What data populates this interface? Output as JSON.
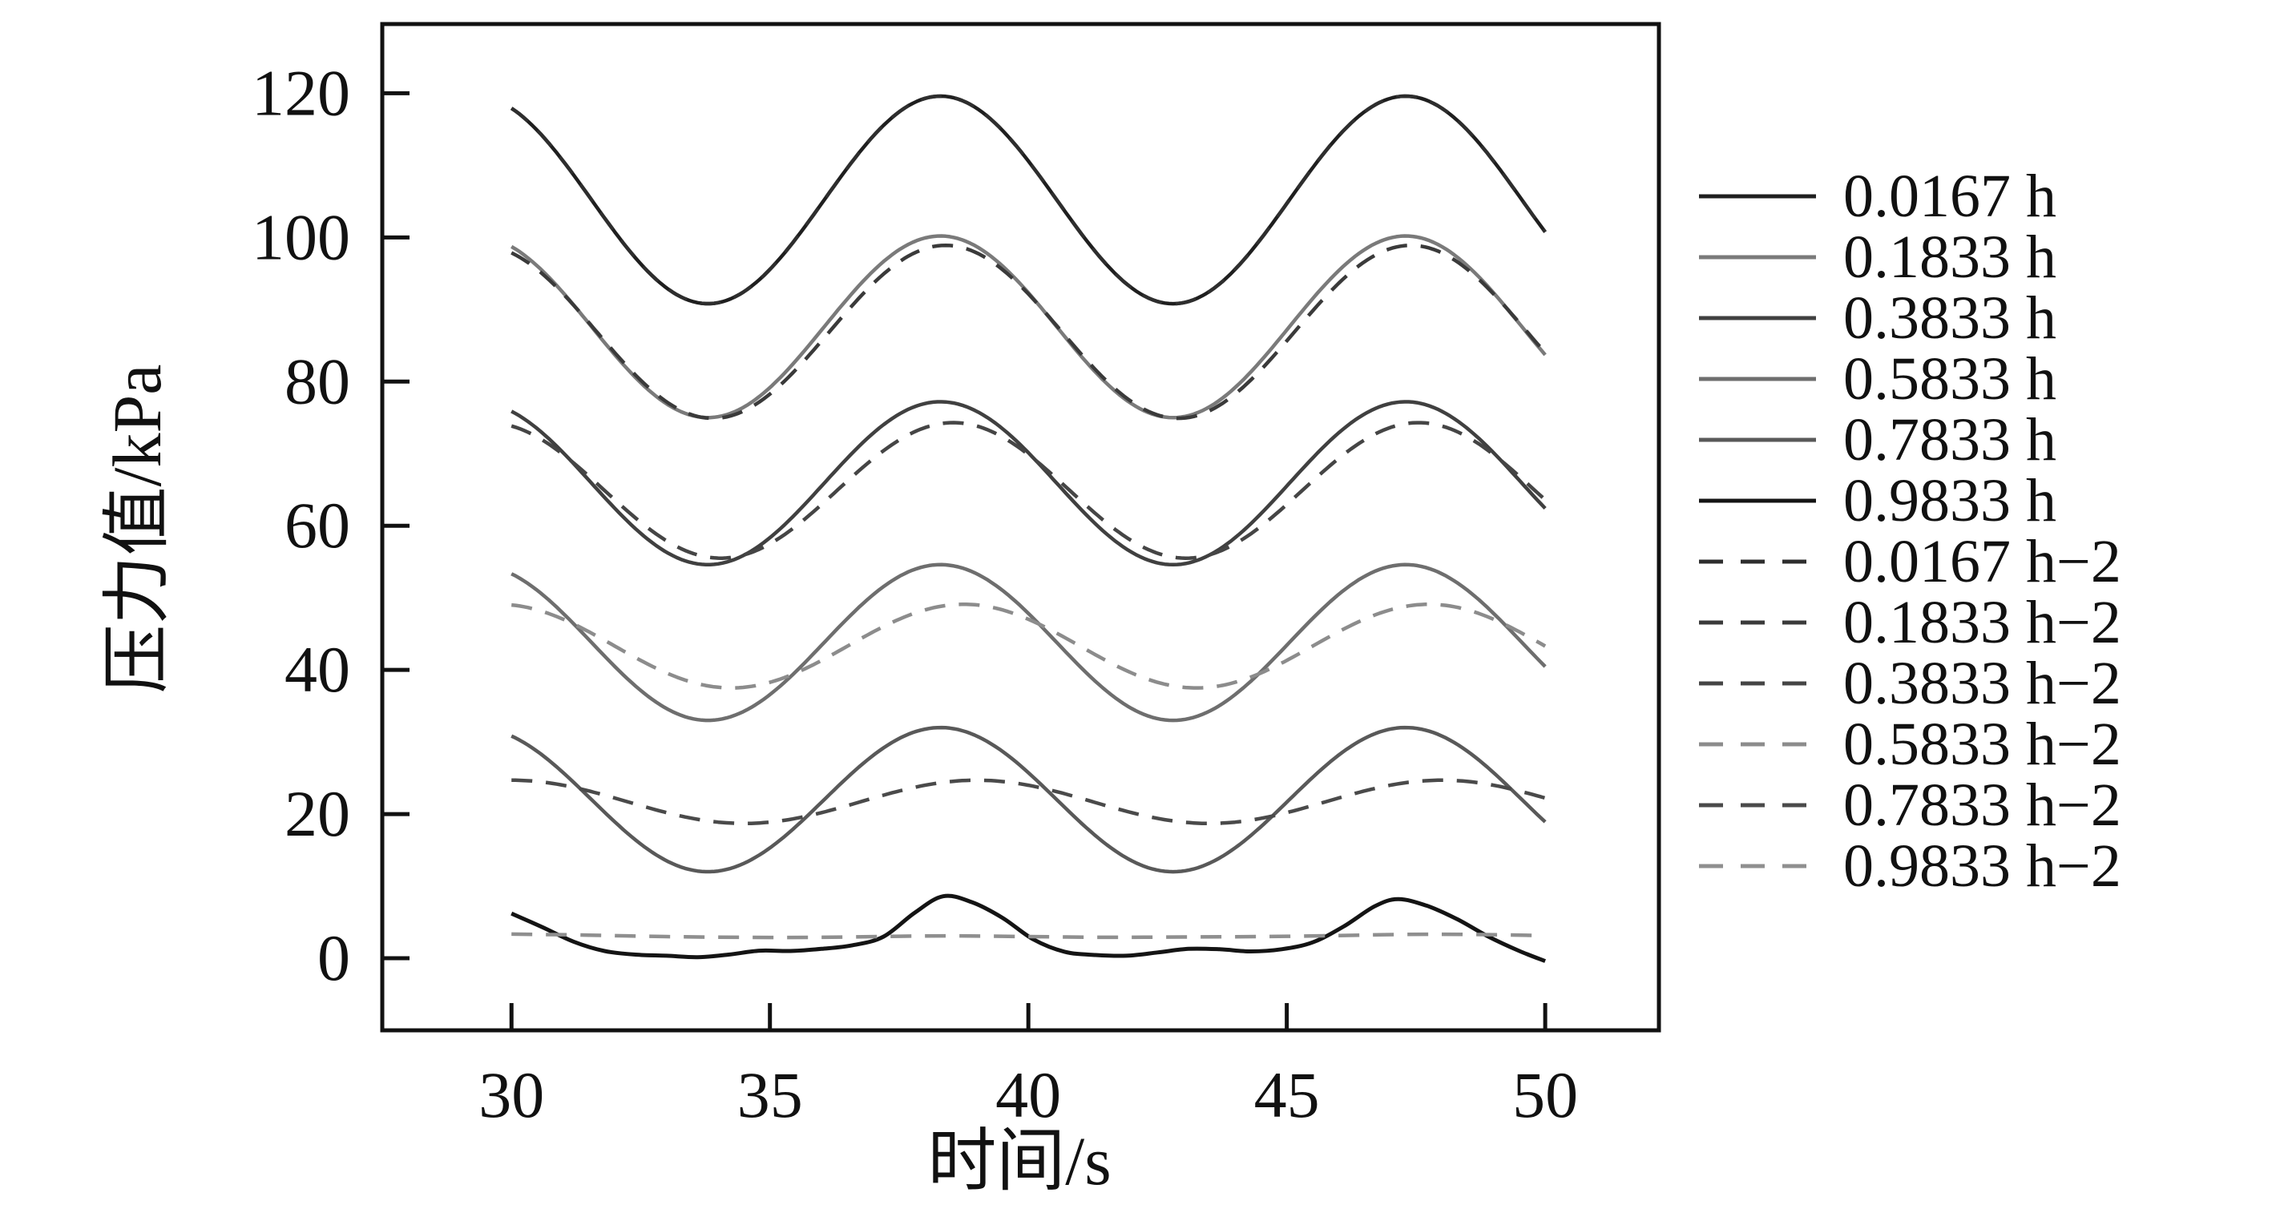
{
  "figure": {
    "background": "#ffffff",
    "border_color": "#111111",
    "text_color": "#111111"
  },
  "chart_data": {
    "type": "line",
    "title": "",
    "xlabel": "时间/s",
    "ylabel": "压力值/kPa",
    "xlim": [
      27.5,
      52.2
    ],
    "ylim": [
      -10,
      129.6
    ],
    "x_ticks": [
      "30",
      "35",
      "40",
      "45",
      "50"
    ],
    "x_tick_values": [
      30,
      35,
      40,
      45,
      50
    ],
    "y_ticks": [
      "0",
      "20",
      "40",
      "60",
      "80",
      "100",
      "120"
    ],
    "y_tick_values": [
      0,
      20,
      40,
      60,
      80,
      100,
      120
    ],
    "grid": false,
    "legend_position": "right-outside",
    "wave": {
      "period_s": 9.0,
      "peak_x_s": 38.3,
      "x_start": 30,
      "x_end": 50
    },
    "series": [
      {
        "label": "0.0167 h",
        "style": "solid",
        "color": "#1f1f1f",
        "model": "sine",
        "mean_kpa": 105.2,
        "amplitude_kpa": 14.4,
        "phase_lag_s": 0,
        "peak_kpa": 119.6,
        "trough_kpa": 90.8
      },
      {
        "label": "0.1833 h",
        "style": "solid",
        "color": "#7a7a7a",
        "model": "sine",
        "mean_kpa": 87.6,
        "amplitude_kpa": 12.6,
        "phase_lag_s": 0,
        "peak_kpa": 100.2,
        "trough_kpa": 75.0
      },
      {
        "label": "0.3833 h",
        "style": "solid",
        "color": "#404040",
        "model": "sine",
        "mean_kpa": 65.9,
        "amplitude_kpa": 11.3,
        "phase_lag_s": 0,
        "peak_kpa": 77.2,
        "trough_kpa": 54.6
      },
      {
        "label": "0.5833 h",
        "style": "solid",
        "color": "#6e6e6e",
        "model": "sine",
        "mean_kpa": 43.8,
        "amplitude_kpa": 10.8,
        "phase_lag_s": 0,
        "peak_kpa": 54.6,
        "trough_kpa": 33.0
      },
      {
        "label": "0.7833 h",
        "style": "solid",
        "color": "#595959",
        "model": "sine",
        "mean_kpa": 22.0,
        "amplitude_kpa": 10.0,
        "phase_lag_s": 0,
        "peak_kpa": 32.0,
        "trough_kpa": 12.0
      },
      {
        "label": "0.9833 h",
        "style": "solid",
        "color": "#141414",
        "model": "points",
        "points": [
          [
            30,
            6.2
          ],
          [
            30.6,
            4.3
          ],
          [
            31.2,
            2.3
          ],
          [
            31.8,
            1.0
          ],
          [
            32.4,
            0.5
          ],
          [
            33.0,
            0.35
          ],
          [
            33.6,
            0.15
          ],
          [
            34.2,
            0.5
          ],
          [
            34.8,
            1.05
          ],
          [
            35.4,
            1.0
          ],
          [
            36.0,
            1.3
          ],
          [
            36.6,
            1.8
          ],
          [
            37.2,
            3.0
          ],
          [
            37.8,
            6.3
          ],
          [
            38.35,
            8.6
          ],
          [
            38.9,
            7.8
          ],
          [
            39.5,
            5.6
          ],
          [
            40.1,
            2.6
          ],
          [
            40.7,
            0.9
          ],
          [
            41.3,
            0.45
          ],
          [
            41.9,
            0.35
          ],
          [
            42.5,
            0.8
          ],
          [
            43.1,
            1.3
          ],
          [
            43.7,
            1.25
          ],
          [
            44.3,
            0.95
          ],
          [
            44.9,
            1.25
          ],
          [
            45.5,
            2.2
          ],
          [
            46.1,
            4.4
          ],
          [
            46.7,
            7.2
          ],
          [
            47.15,
            8.2
          ],
          [
            47.7,
            7.3
          ],
          [
            48.3,
            5.4
          ],
          [
            48.9,
            3.0
          ],
          [
            49.5,
            1.0
          ],
          [
            50,
            -0.4
          ]
        ]
      },
      {
        "label": "0.0167 h−2",
        "style": "dashed",
        "color": "#2e2e2e",
        "model": "sine",
        "mean_kpa": 105.2,
        "amplitude_kpa": 14.4,
        "phase_lag_s": 0,
        "peak_kpa": 119.6,
        "trough_kpa": 90.8
      },
      {
        "label": "0.1833 h−2",
        "style": "dashed",
        "color": "#3a3a3a",
        "model": "sine",
        "mean_kpa": 86.9,
        "amplitude_kpa": 12.0,
        "phase_lag_s": 0.1,
        "peak_kpa": 98.9,
        "trough_kpa": 74.9
      },
      {
        "label": "0.3833 h−2",
        "style": "dashed",
        "color": "#454545",
        "model": "sine",
        "mean_kpa": 64.9,
        "amplitude_kpa": 9.4,
        "phase_lag_s": 0.25,
        "peak_kpa": 74.3,
        "trough_kpa": 55.5
      },
      {
        "label": "0.5833 h−2",
        "style": "dashed",
        "color": "#8c8c8c",
        "model": "sine",
        "mean_kpa": 43.3,
        "amplitude_kpa": 5.8,
        "phase_lag_s": 0.45,
        "peak_kpa": 49.1,
        "trough_kpa": 37.5
      },
      {
        "label": "0.7833 h−2",
        "style": "dashed",
        "color": "#4a4a4a",
        "model": "sine",
        "mean_kpa": 21.7,
        "amplitude_kpa": 3.0,
        "phase_lag_s": 0.7,
        "peak_kpa": 24.7,
        "trough_kpa": 18.7
      },
      {
        "label": "0.9833 h−2",
        "style": "dashed",
        "color": "#8f8f8f",
        "model": "points",
        "points": [
          [
            30,
            3.35
          ],
          [
            31.5,
            3.2
          ],
          [
            33,
            3.0
          ],
          [
            34.5,
            2.9
          ],
          [
            36,
            2.9
          ],
          [
            37.5,
            3.05
          ],
          [
            38.5,
            3.1
          ],
          [
            40,
            3.0
          ],
          [
            41.5,
            2.9
          ],
          [
            43,
            2.95
          ],
          [
            44.5,
            3.0
          ],
          [
            46,
            3.15
          ],
          [
            47.3,
            3.3
          ],
          [
            48.5,
            3.3
          ],
          [
            50,
            3.15
          ]
        ]
      }
    ]
  }
}
